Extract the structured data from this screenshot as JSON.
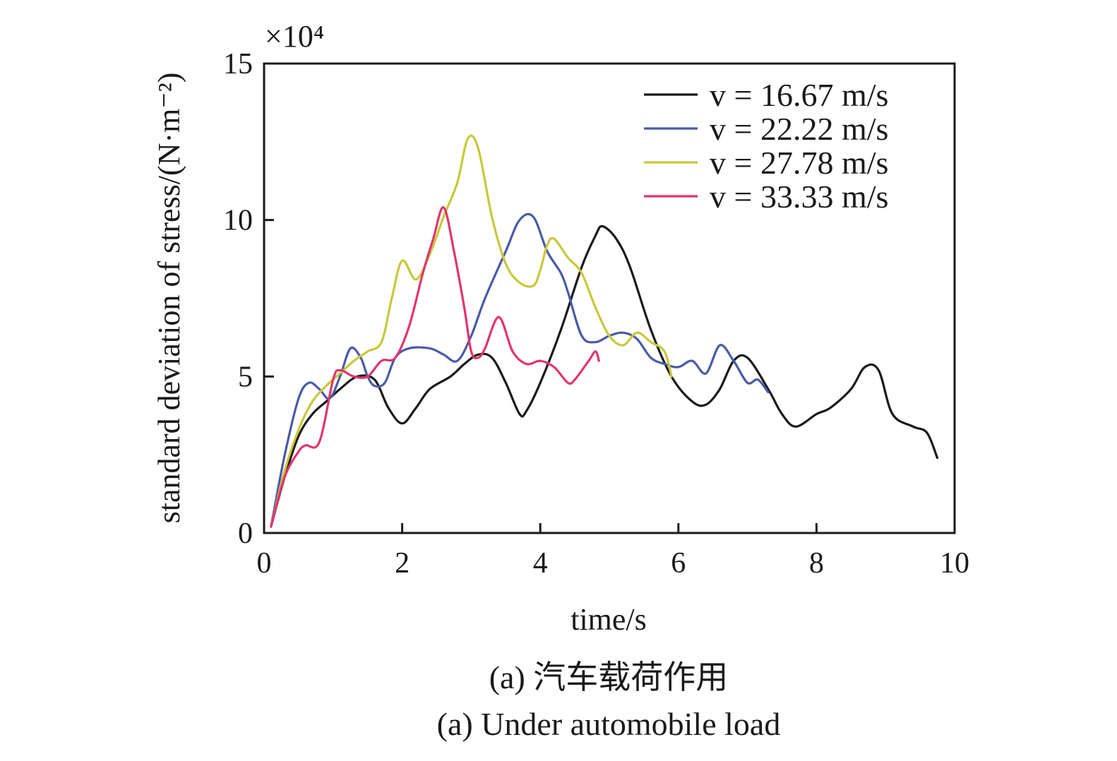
{
  "chart_data": {
    "type": "line",
    "xlabel": "time/s",
    "ylabel": "standard deviation of stress/(N·m⁻²)",
    "y_multiplier": "×10⁴",
    "xlim": [
      0,
      10
    ],
    "ylim": [
      0,
      15
    ],
    "xticks": [
      "0",
      "2",
      "4",
      "6",
      "8",
      "10"
    ],
    "yticks": [
      "0",
      "5",
      "10",
      "15"
    ],
    "legend_position": "top-right",
    "grid": false,
    "captions": [
      "(a) 汽车载荷作用",
      "(a) Under automobile load"
    ],
    "series": [
      {
        "name": "v = 16.67 m/s",
        "color": "#1a1a1a",
        "x": [
          0.1,
          0.3,
          0.5,
          0.7,
          0.9,
          1.1,
          1.35,
          1.6,
          1.8,
          2.0,
          2.2,
          2.4,
          2.7,
          2.9,
          3.1,
          3.3,
          3.5,
          3.7,
          3.8,
          4.0,
          4.3,
          4.6,
          4.8,
          4.9,
          5.1,
          5.3,
          5.6,
          5.9,
          6.2,
          6.4,
          6.6,
          6.8,
          7.0,
          7.3,
          7.5,
          7.7,
          8.0,
          8.2,
          8.5,
          8.7,
          8.9,
          9.1,
          9.4,
          9.6,
          9.75
        ],
        "y": [
          0.2,
          1.8,
          3.1,
          3.8,
          4.2,
          4.6,
          5.0,
          4.9,
          4.0,
          3.5,
          4.0,
          4.6,
          5.0,
          5.4,
          5.7,
          5.6,
          4.8,
          3.8,
          3.9,
          4.8,
          6.5,
          8.5,
          9.5,
          9.8,
          9.4,
          8.5,
          6.5,
          5.0,
          4.2,
          4.1,
          4.6,
          5.5,
          5.6,
          4.6,
          3.8,
          3.4,
          3.8,
          4.0,
          4.6,
          5.3,
          5.2,
          3.8,
          3.4,
          3.2,
          2.4
        ]
      },
      {
        "name": "v = 22.22 m/s",
        "color": "#4a5aa8",
        "x": [
          0.1,
          0.3,
          0.5,
          0.65,
          0.8,
          0.95,
          1.1,
          1.25,
          1.4,
          1.5,
          1.6,
          1.75,
          1.9,
          2.1,
          2.4,
          2.6,
          2.8,
          3.0,
          3.2,
          3.5,
          3.7,
          3.9,
          4.1,
          4.3,
          4.4,
          4.6,
          4.8,
          5.0,
          5.2,
          5.4,
          5.6,
          5.8,
          6.0,
          6.2,
          6.4,
          6.6,
          6.8,
          7.0,
          7.15,
          7.3
        ],
        "y": [
          0.2,
          2.5,
          4.3,
          4.8,
          4.6,
          4.3,
          5.0,
          5.9,
          5.6,
          5.0,
          4.7,
          4.8,
          5.6,
          5.9,
          5.9,
          5.7,
          5.5,
          6.3,
          7.5,
          9.0,
          10.0,
          10.1,
          9.0,
          8.3,
          7.7,
          6.3,
          6.1,
          6.3,
          6.4,
          6.2,
          5.6,
          5.4,
          5.3,
          5.5,
          5.1,
          6.0,
          5.5,
          4.8,
          4.9,
          4.5
        ]
      },
      {
        "name": "v = 27.78 m/s",
        "color": "#c8c83a",
        "x": [
          0.1,
          0.3,
          0.5,
          0.7,
          0.9,
          1.1,
          1.3,
          1.5,
          1.7,
          1.85,
          2.0,
          2.2,
          2.4,
          2.6,
          2.8,
          2.95,
          3.1,
          3.3,
          3.5,
          3.7,
          3.9,
          4.0,
          4.1,
          4.2,
          4.4,
          4.6,
          4.8,
          5.0,
          5.2,
          5.4,
          5.6,
          5.8,
          5.9
        ],
        "y": [
          0.2,
          2.0,
          3.3,
          4.2,
          4.7,
          5.1,
          5.5,
          5.8,
          6.1,
          7.5,
          8.7,
          8.1,
          8.9,
          10.1,
          11.2,
          12.6,
          12.3,
          10.1,
          8.6,
          8.0,
          7.9,
          8.4,
          9.2,
          9.4,
          8.8,
          8.3,
          7.2,
          6.3,
          6.0,
          6.4,
          6.1,
          5.8,
          5.0
        ]
      },
      {
        "name": "v = 33.33 m/s",
        "color": "#e0356a",
        "x": [
          0.1,
          0.3,
          0.5,
          0.6,
          0.8,
          1.0,
          1.1,
          1.3,
          1.5,
          1.7,
          1.9,
          2.1,
          2.3,
          2.45,
          2.6,
          2.75,
          2.9,
          3.0,
          3.1,
          3.2,
          3.4,
          3.6,
          3.8,
          4.0,
          4.2,
          4.4,
          4.5,
          4.7,
          4.8,
          4.85
        ],
        "y": [
          0.2,
          1.8,
          2.6,
          2.8,
          2.9,
          4.9,
          5.2,
          5.0,
          5.0,
          5.5,
          5.6,
          6.6,
          8.3,
          9.4,
          10.4,
          9.0,
          7.2,
          5.8,
          5.6,
          5.9,
          6.9,
          5.8,
          5.4,
          5.5,
          5.3,
          4.8,
          4.9,
          5.5,
          5.8,
          5.5
        ]
      }
    ]
  }
}
